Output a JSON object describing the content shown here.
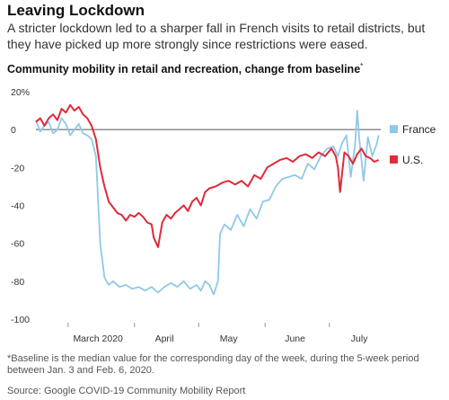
{
  "title": "Leaving Lockdown",
  "subtitle": "A stricter lockdown led to a sharper fall in French visits to retail districts, but they have picked up more strongly since restrictions were eased.",
  "chart_title": "Community mobility in retail and recreation, change from baseline",
  "chart_title_marker": "*",
  "footnote": "*Baseline is the median value for the corresponding day of the week, during the 5-week period between Jan. 3 and Feb. 6, 2020.",
  "source": "Source: Google COVID-19 Community Mobility Report",
  "chart_data": {
    "type": "line",
    "title": "Community mobility in retail and recreation, change from baseline",
    "xlabel": "",
    "ylabel": "",
    "ylim": [
      -100,
      20
    ],
    "yticks": [
      20,
      0,
      -20,
      -40,
      -60,
      -80,
      -100
    ],
    "ytick_labels": [
      "20%",
      "0",
      "-20",
      "-40",
      "-60",
      "-80",
      "-100"
    ],
    "xlim": [
      "2020-02-15",
      "2020-07-25"
    ],
    "xticks": [
      {
        "date": "2020-03-01",
        "label": "March 2020"
      },
      {
        "date": "2020-04-01",
        "label": "April"
      },
      {
        "date": "2020-05-01",
        "label": "May"
      },
      {
        "date": "2020-06-01",
        "label": "June"
      },
      {
        "date": "2020-07-01",
        "label": "July"
      }
    ],
    "zero_line": true,
    "grid": false,
    "legend": "right",
    "series": [
      {
        "name": "France",
        "color": "#8fc9e8",
        "points": [
          [
            "2020-02-15",
            5
          ],
          [
            "2020-02-17",
            -1
          ],
          [
            "2020-02-19",
            2
          ],
          [
            "2020-02-21",
            4
          ],
          [
            "2020-02-23",
            -2
          ],
          [
            "2020-02-25",
            0
          ],
          [
            "2020-02-27",
            6
          ],
          [
            "2020-02-29",
            3
          ],
          [
            "2020-03-02",
            -3
          ],
          [
            "2020-03-04",
            0
          ],
          [
            "2020-03-06",
            3
          ],
          [
            "2020-03-08",
            -2
          ],
          [
            "2020-03-10",
            -3
          ],
          [
            "2020-03-12",
            -5
          ],
          [
            "2020-03-14",
            -14
          ],
          [
            "2020-03-16",
            -60
          ],
          [
            "2020-03-18",
            -78
          ],
          [
            "2020-03-20",
            -82
          ],
          [
            "2020-03-22",
            -80
          ],
          [
            "2020-03-25",
            -83
          ],
          [
            "2020-03-28",
            -82
          ],
          [
            "2020-03-31",
            -84
          ],
          [
            "2020-04-03",
            -83
          ],
          [
            "2020-04-06",
            -85
          ],
          [
            "2020-04-09",
            -83
          ],
          [
            "2020-04-12",
            -86
          ],
          [
            "2020-04-15",
            -83
          ],
          [
            "2020-04-18",
            -81
          ],
          [
            "2020-04-21",
            -83
          ],
          [
            "2020-04-24",
            -80
          ],
          [
            "2020-04-27",
            -84
          ],
          [
            "2020-04-30",
            -82
          ],
          [
            "2020-05-02",
            -85
          ],
          [
            "2020-05-04",
            -80
          ],
          [
            "2020-05-06",
            -82
          ],
          [
            "2020-05-08",
            -87
          ],
          [
            "2020-05-10",
            -80
          ],
          [
            "2020-05-11",
            -55
          ],
          [
            "2020-05-13",
            -50
          ],
          [
            "2020-05-16",
            -53
          ],
          [
            "2020-05-19",
            -45
          ],
          [
            "2020-05-22",
            -51
          ],
          [
            "2020-05-25",
            -42
          ],
          [
            "2020-05-28",
            -47
          ],
          [
            "2020-05-31",
            -38
          ],
          [
            "2020-06-03",
            -37
          ],
          [
            "2020-06-06",
            -30
          ],
          [
            "2020-06-09",
            -26
          ],
          [
            "2020-06-12",
            -25
          ],
          [
            "2020-06-15",
            -24
          ],
          [
            "2020-06-18",
            -26
          ],
          [
            "2020-06-21",
            -18
          ],
          [
            "2020-06-24",
            -21
          ],
          [
            "2020-06-27",
            -14
          ],
          [
            "2020-06-30",
            -10
          ],
          [
            "2020-07-03",
            -9
          ],
          [
            "2020-07-05",
            -14
          ],
          [
            "2020-07-07",
            -7
          ],
          [
            "2020-07-09",
            -3
          ],
          [
            "2020-07-11",
            -25
          ],
          [
            "2020-07-13",
            -8
          ],
          [
            "2020-07-14",
            10
          ],
          [
            "2020-07-15",
            -5
          ],
          [
            "2020-07-17",
            -27
          ],
          [
            "2020-07-19",
            -4
          ],
          [
            "2020-07-21",
            -14
          ],
          [
            "2020-07-23",
            -8
          ],
          [
            "2020-07-24",
            -3
          ]
        ]
      },
      {
        "name": "U.S.",
        "color": "#e02a3a",
        "points": [
          [
            "2020-02-15",
            4
          ],
          [
            "2020-02-17",
            6
          ],
          [
            "2020-02-19",
            2
          ],
          [
            "2020-02-21",
            6
          ],
          [
            "2020-02-23",
            8
          ],
          [
            "2020-02-25",
            5
          ],
          [
            "2020-02-27",
            11
          ],
          [
            "2020-02-29",
            9
          ],
          [
            "2020-03-02",
            13
          ],
          [
            "2020-03-04",
            10
          ],
          [
            "2020-03-06",
            12
          ],
          [
            "2020-03-08",
            8
          ],
          [
            "2020-03-10",
            6
          ],
          [
            "2020-03-12",
            2
          ],
          [
            "2020-03-14",
            -5
          ],
          [
            "2020-03-16",
            -20
          ],
          [
            "2020-03-18",
            -30
          ],
          [
            "2020-03-20",
            -38
          ],
          [
            "2020-03-22",
            -41
          ],
          [
            "2020-03-24",
            -44
          ],
          [
            "2020-03-26",
            -45
          ],
          [
            "2020-03-28",
            -48
          ],
          [
            "2020-03-30",
            -45
          ],
          [
            "2020-04-01",
            -46
          ],
          [
            "2020-04-03",
            -44
          ],
          [
            "2020-04-05",
            -46
          ],
          [
            "2020-04-07",
            -49
          ],
          [
            "2020-04-09",
            -50
          ],
          [
            "2020-04-10",
            -57
          ],
          [
            "2020-04-12",
            -62
          ],
          [
            "2020-04-14",
            -49
          ],
          [
            "2020-04-16",
            -45
          ],
          [
            "2020-04-18",
            -47
          ],
          [
            "2020-04-20",
            -44
          ],
          [
            "2020-04-22",
            -42
          ],
          [
            "2020-04-24",
            -40
          ],
          [
            "2020-04-26",
            -43
          ],
          [
            "2020-04-28",
            -38
          ],
          [
            "2020-04-30",
            -36
          ],
          [
            "2020-05-02",
            -40
          ],
          [
            "2020-05-04",
            -33
          ],
          [
            "2020-05-06",
            -31
          ],
          [
            "2020-05-09",
            -30
          ],
          [
            "2020-05-12",
            -28
          ],
          [
            "2020-05-15",
            -27
          ],
          [
            "2020-05-18",
            -29
          ],
          [
            "2020-05-21",
            -27
          ],
          [
            "2020-05-24",
            -30
          ],
          [
            "2020-05-27",
            -24
          ],
          [
            "2020-05-30",
            -26
          ],
          [
            "2020-06-02",
            -20
          ],
          [
            "2020-06-05",
            -18
          ],
          [
            "2020-06-08",
            -16
          ],
          [
            "2020-06-11",
            -15
          ],
          [
            "2020-06-14",
            -17
          ],
          [
            "2020-06-17",
            -14
          ],
          [
            "2020-06-20",
            -13
          ],
          [
            "2020-06-23",
            -15
          ],
          [
            "2020-06-26",
            -12
          ],
          [
            "2020-06-29",
            -14
          ],
          [
            "2020-07-02",
            -10
          ],
          [
            "2020-07-04",
            -14
          ],
          [
            "2020-07-05",
            -20
          ],
          [
            "2020-07-06",
            -33
          ],
          [
            "2020-07-08",
            -12
          ],
          [
            "2020-07-10",
            -14
          ],
          [
            "2020-07-12",
            -18
          ],
          [
            "2020-07-14",
            -13
          ],
          [
            "2020-07-16",
            -10
          ],
          [
            "2020-07-18",
            -14
          ],
          [
            "2020-07-20",
            -15
          ],
          [
            "2020-07-22",
            -17
          ],
          [
            "2020-07-24",
            -16
          ]
        ]
      }
    ]
  }
}
